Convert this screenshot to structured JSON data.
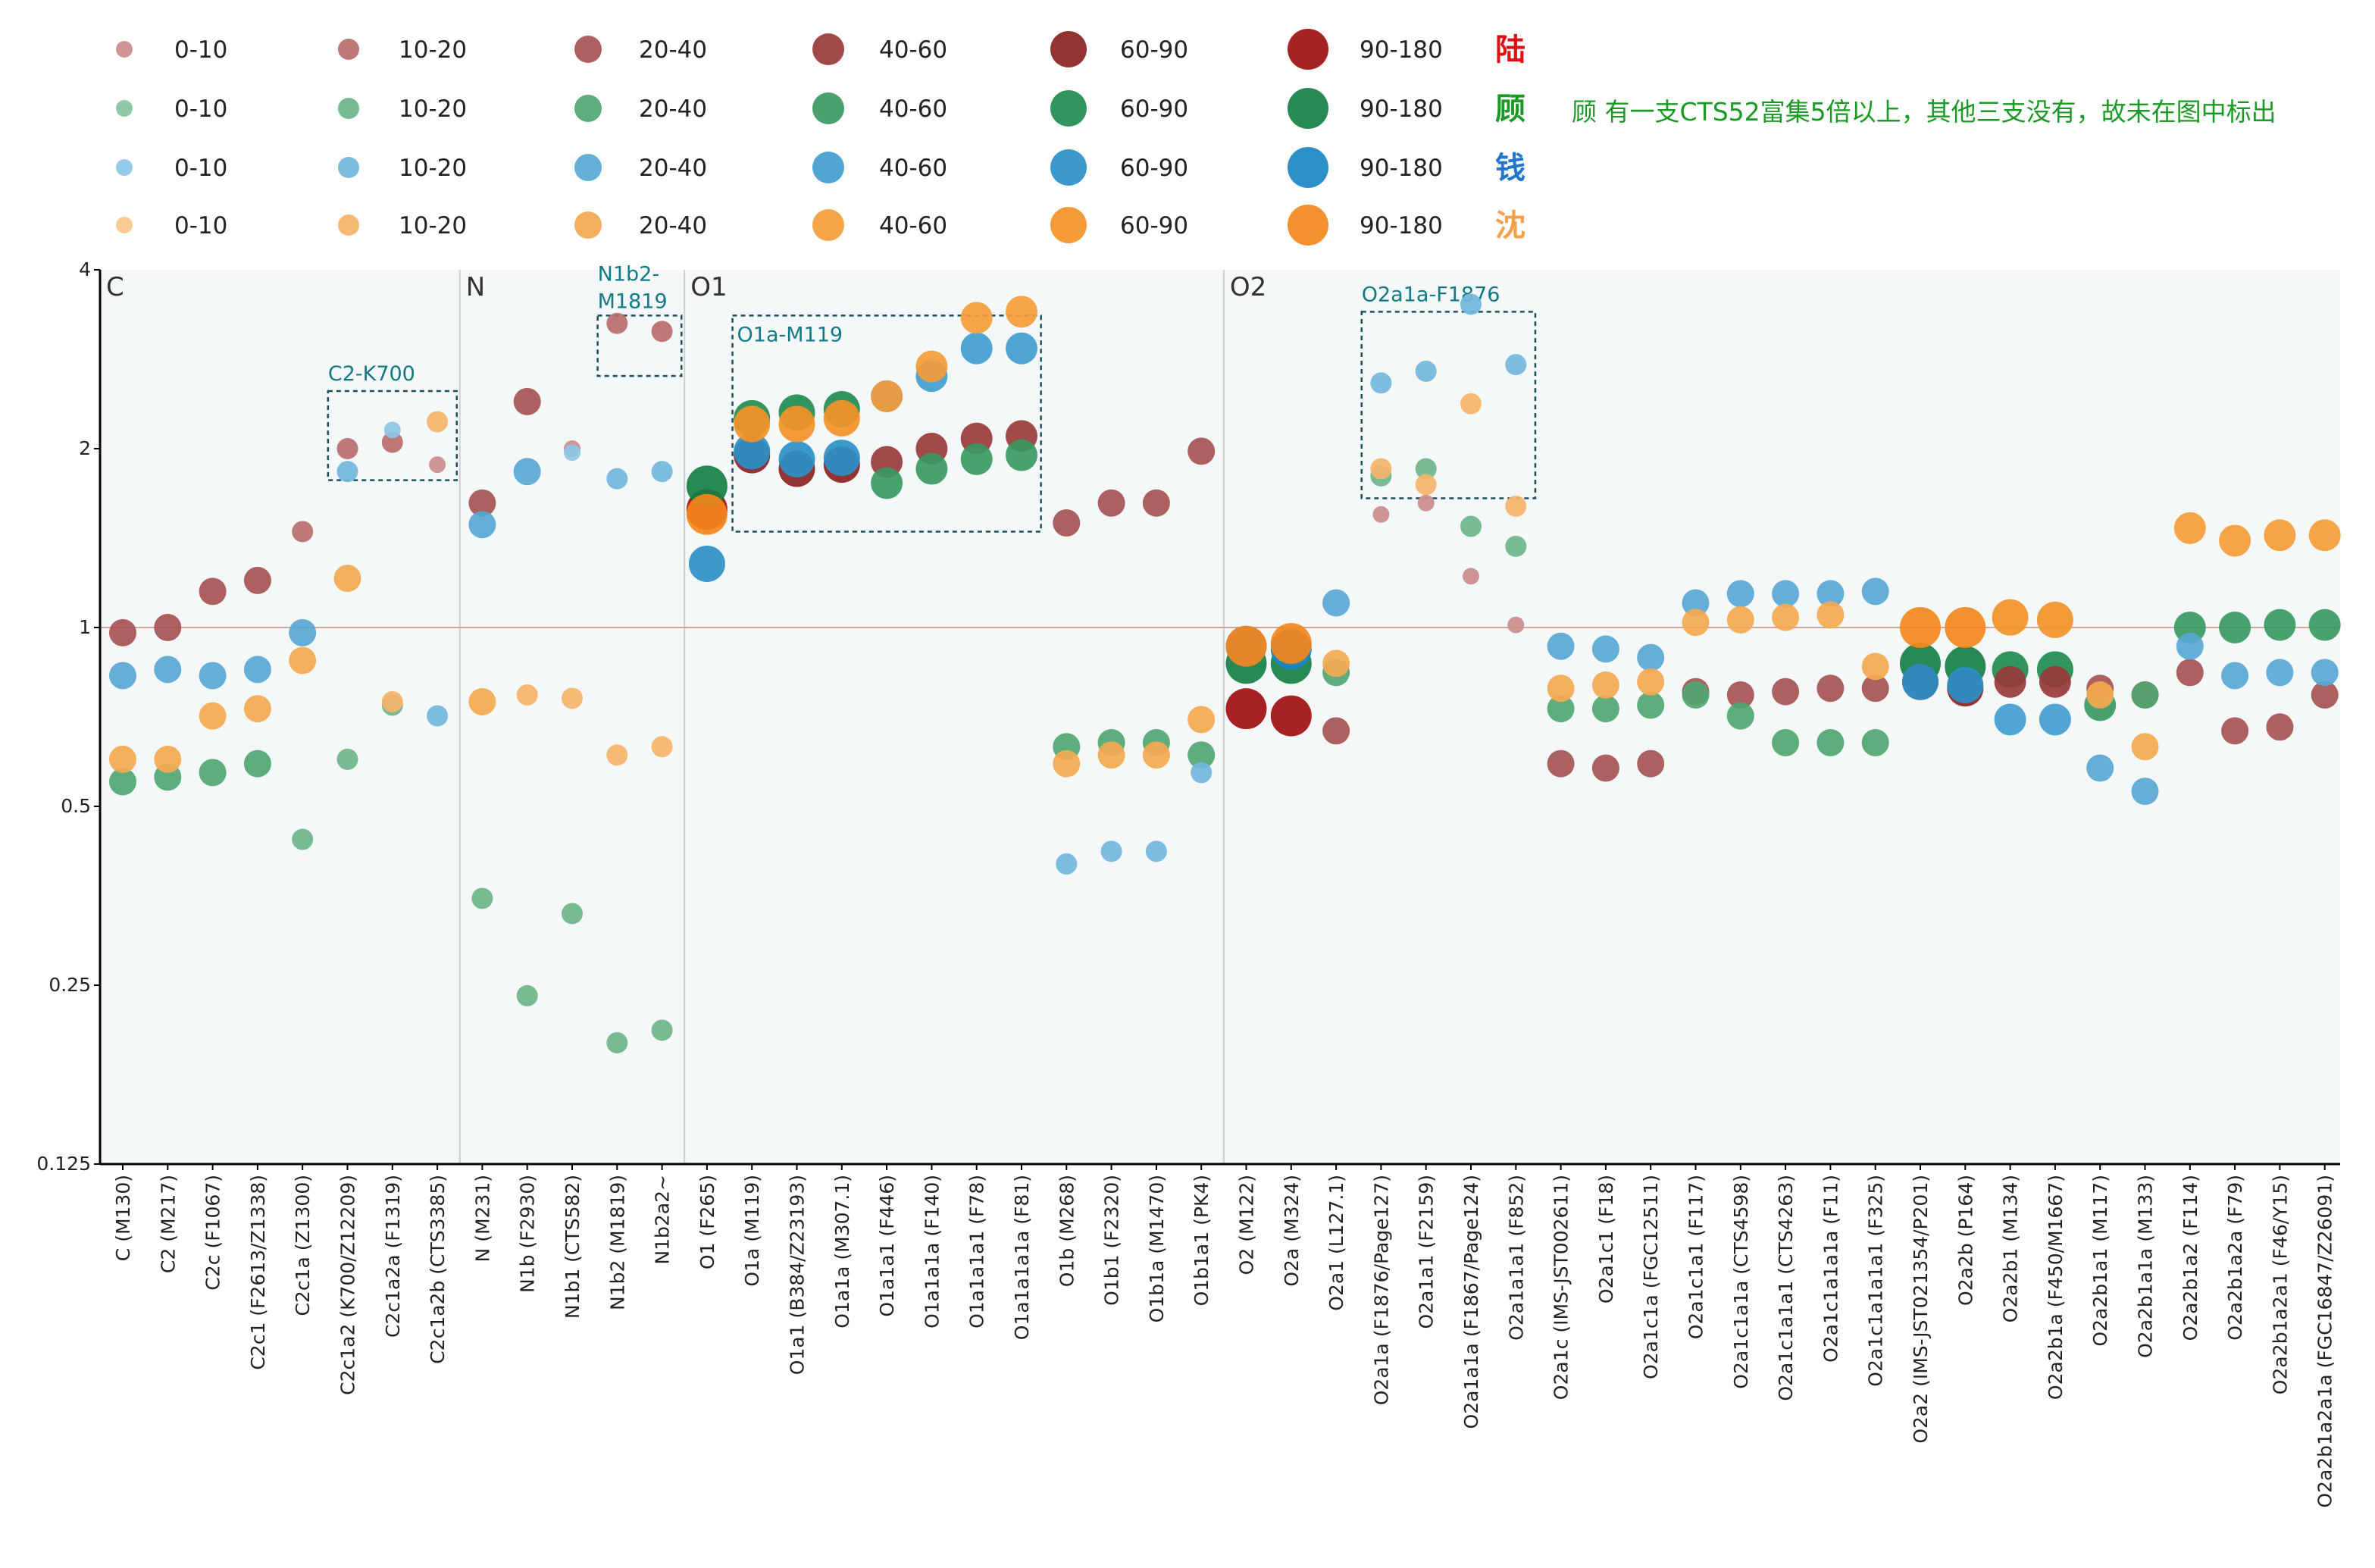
{
  "colors": {
    "lu": [
      "#c98c8c",
      "#b86d6d",
      "#a55252",
      "#983a3a",
      "#8b2222",
      "#a00f0f"
    ],
    "gu": [
      "#86c4a0",
      "#6db58a",
      "#4fa672",
      "#3a9962",
      "#228c50",
      "#157f44"
    ],
    "qian": [
      "#8cc6e6",
      "#71b6dc",
      "#57a7d4",
      "#419dcf",
      "#2b90c8",
      "#1a85c2"
    ],
    "shen": [
      "#f8c68a",
      "#f6b46a",
      "#f4a950",
      "#f49c38",
      "#f39228",
      "#f3871b"
    ],
    "surname_colors": [
      "#dd1111",
      "#1a9a24",
      "#2277cc",
      "#f3a04a"
    ],
    "refline": "#c98a7a",
    "plot_bg": "#f5f8f9"
  },
  "legend": {
    "bins": [
      "0-10",
      "10-20",
      "20-40",
      "40-60",
      "60-90",
      "90-180"
    ],
    "surnames": [
      "陆",
      "顾",
      "钱",
      "沈"
    ],
    "note": "顾 有一支CTS52富集5倍以上，其他三支没有，故未在图中标出"
  },
  "chart_data": {
    "type": "scatter",
    "y_scale": "log2",
    "ylim": [
      0.125,
      4
    ],
    "y_ticks": [
      "4",
      "2",
      "1",
      "0.5",
      "0.25",
      "0.125"
    ],
    "reference_line": 1,
    "groups": [
      {
        "label": "C",
        "start": 0
      },
      {
        "label": "N",
        "start": 8
      },
      {
        "label": "O1",
        "start": 13
      },
      {
        "label": "O2",
        "start": 25
      }
    ],
    "boxes": [
      {
        "label": "C2-K700",
        "from": 5,
        "to": 7,
        "ymin": 1.77,
        "ymax": 2.5
      },
      {
        "label": "N1b2-\nM1819",
        "from": 11,
        "to": 12,
        "ymin": 2.65,
        "ymax": 3.35
      },
      {
        "label": "O1a-M119",
        "from": 14,
        "to": 20,
        "ymin": 1.45,
        "ymax": 3.35
      },
      {
        "label": "O2a1a-F1876",
        "from": 28,
        "to": 31,
        "ymin": 1.65,
        "ymax": 3.4
      }
    ],
    "categories": [
      "C (M130)",
      "C2 (M217)",
      "C2c (F1067)",
      "C2c1 (F2613/Z1338)",
      "C2c1a (Z1300)",
      "C2c1a2 (K700/Z12209)",
      "C2c1a2a (F1319)",
      "C2c1a2b (CTS3385)",
      "N (M231)",
      "N1b (F2930)",
      "N1b1 (CTS582)",
      "N1b2 (M1819)",
      "N1b2a2~",
      "O1 (F265)",
      "O1a (M119)",
      "O1a1 (B384/Z23193)",
      "O1a1a (M307.1)",
      "O1a1a1 (F446)",
      "O1a1a1a (F140)",
      "O1a1a1a1 (F78)",
      "O1a1a1a1a (F81)",
      "O1b (M268)",
      "O1b1 (F2320)",
      "O1b1a (M1470)",
      "O1b1a1 (PK4)",
      "O2 (M122)",
      "O2a (M324)",
      "O2a1 (L127.1)",
      "O2a1a (F1876/Page127)",
      "O2a1a1 (F2159)",
      "O2a1a1a (F1867/Page124)",
      "O2a1a1a1 (F852)",
      "O2a1c (IMS-JST002611)",
      "O2a1c1 (F18)",
      "O2a1c1a (FGC12511)",
      "O2a1c1a1 (F117)",
      "O2a1c1a1a (CTS4598)",
      "O2a1c1a1a1 (CTS4263)",
      "O2a1c1a1a1a (F11)",
      "O2a1c1a1a1a1 (F325)",
      "O2a2 (IMS-JST021354/P201)",
      "O2a2b (P164)",
      "O2a2b1 (M134)",
      "O2a2b1a (F450/M1667)",
      "O2a2b1a1 (M117)",
      "O2a2b1a1a (M133)",
      "O2a2b1a2 (F114)",
      "O2a2b1a2a (F79)",
      "O2a2b1a2a1 (F46/Y15)",
      "O2a2b1a2a1a (FGC16847/Z26091)"
    ],
    "series": [
      {
        "name": "陆",
        "key": "lu",
        "points": [
          [
            0,
            0.98,
            2
          ],
          [
            1,
            1.0,
            2
          ],
          [
            2,
            1.15,
            2
          ],
          [
            3,
            1.2,
            2
          ],
          [
            4,
            1.45,
            1
          ],
          [
            5,
            2.0,
            1
          ],
          [
            6,
            2.05,
            1
          ],
          [
            7,
            1.88,
            0
          ],
          [
            8,
            1.62,
            2
          ],
          [
            9,
            2.4,
            2
          ],
          [
            10,
            2.0,
            0
          ],
          [
            11,
            3.25,
            1
          ],
          [
            12,
            3.15,
            1
          ],
          [
            13,
            1.58,
            5
          ],
          [
            14,
            1.95,
            4
          ],
          [
            15,
            1.85,
            4
          ],
          [
            16,
            1.88,
            4
          ],
          [
            17,
            1.9,
            3
          ],
          [
            18,
            2.0,
            3
          ],
          [
            19,
            2.08,
            3
          ],
          [
            20,
            2.1,
            3
          ],
          [
            21,
            1.5,
            2
          ],
          [
            22,
            1.62,
            2
          ],
          [
            23,
            1.62,
            2
          ],
          [
            24,
            1.98,
            2
          ],
          [
            25,
            0.73,
            5
          ],
          [
            26,
            0.71,
            5
          ],
          [
            27,
            0.67,
            2
          ],
          [
            28,
            1.55,
            0
          ],
          [
            29,
            1.62,
            0
          ],
          [
            30,
            1.22,
            0
          ],
          [
            31,
            1.01,
            0
          ],
          [
            32,
            0.59,
            2
          ],
          [
            33,
            0.58,
            2
          ],
          [
            34,
            0.59,
            2
          ],
          [
            35,
            0.78,
            2
          ],
          [
            36,
            0.77,
            2
          ],
          [
            37,
            0.78,
            2
          ],
          [
            38,
            0.79,
            2
          ],
          [
            39,
            0.79,
            2
          ],
          [
            40,
            0.81,
            4
          ],
          [
            41,
            0.79,
            4
          ],
          [
            42,
            0.81,
            3
          ],
          [
            43,
            0.81,
            3
          ],
          [
            44,
            0.79,
            2
          ],
          [
            45,
            0.77,
            2
          ],
          [
            46,
            0.84,
            2
          ],
          [
            47,
            0.67,
            2
          ],
          [
            48,
            0.68,
            2
          ],
          [
            49,
            0.77,
            2
          ]
        ]
      },
      {
        "name": "顾",
        "key": "gu",
        "points": [
          [
            0,
            0.55,
            2
          ],
          [
            1,
            0.56,
            2
          ],
          [
            2,
            0.57,
            2
          ],
          [
            3,
            0.59,
            2
          ],
          [
            4,
            0.44,
            1
          ],
          [
            5,
            0.6,
            1
          ],
          [
            6,
            0.74,
            1
          ],
          [
            8,
            0.35,
            1
          ],
          [
            9,
            0.24,
            1
          ],
          [
            10,
            0.33,
            1
          ],
          [
            11,
            0.2,
            1
          ],
          [
            12,
            0.21,
            1
          ],
          [
            13,
            1.73,
            5
          ],
          [
            14,
            2.25,
            4
          ],
          [
            15,
            2.3,
            4
          ],
          [
            16,
            2.33,
            4
          ],
          [
            17,
            1.75,
            3
          ],
          [
            18,
            1.85,
            3
          ],
          [
            19,
            1.92,
            3
          ],
          [
            20,
            1.95,
            3
          ],
          [
            21,
            0.63,
            2
          ],
          [
            22,
            0.64,
            2
          ],
          [
            23,
            0.64,
            2
          ],
          [
            24,
            0.61,
            2
          ],
          [
            25,
            0.87,
            5
          ],
          [
            26,
            0.87,
            5
          ],
          [
            27,
            0.84,
            2
          ],
          [
            28,
            1.8,
            1
          ],
          [
            29,
            1.85,
            1
          ],
          [
            30,
            1.48,
            1
          ],
          [
            31,
            1.37,
            1
          ],
          [
            32,
            0.73,
            2
          ],
          [
            33,
            0.73,
            2
          ],
          [
            34,
            0.74,
            2
          ],
          [
            35,
            0.77,
            2
          ],
          [
            36,
            0.71,
            2
          ],
          [
            37,
            0.64,
            2
          ],
          [
            38,
            0.64,
            2
          ],
          [
            39,
            0.64,
            2
          ],
          [
            40,
            0.87,
            5
          ],
          [
            41,
            0.86,
            5
          ],
          [
            42,
            0.85,
            4
          ],
          [
            43,
            0.85,
            4
          ],
          [
            44,
            0.74,
            3
          ],
          [
            45,
            0.77,
            2
          ],
          [
            46,
            1.0,
            3
          ],
          [
            47,
            1.0,
            3
          ],
          [
            48,
            1.01,
            3
          ],
          [
            49,
            1.01,
            3
          ]
        ]
      },
      {
        "name": "钱",
        "key": "qian",
        "points": [
          [
            0,
            0.83,
            2
          ],
          [
            1,
            0.85,
            2
          ],
          [
            2,
            0.83,
            2
          ],
          [
            3,
            0.85,
            2
          ],
          [
            4,
            0.98,
            2
          ],
          [
            5,
            1.83,
            1
          ],
          [
            6,
            2.15,
            0
          ],
          [
            7,
            0.71,
            1
          ],
          [
            8,
            1.49,
            2
          ],
          [
            9,
            1.83,
            2
          ],
          [
            10,
            1.97,
            0
          ],
          [
            11,
            1.78,
            1
          ],
          [
            12,
            1.83,
            1
          ],
          [
            13,
            1.28,
            4
          ],
          [
            14,
            1.98,
            4
          ],
          [
            15,
            1.92,
            4
          ],
          [
            16,
            1.93,
            4
          ],
          [
            17,
            2.45,
            3
          ],
          [
            18,
            2.65,
            3
          ],
          [
            19,
            2.95,
            3
          ],
          [
            20,
            2.95,
            3
          ],
          [
            21,
            0.4,
            1
          ],
          [
            22,
            0.42,
            1
          ],
          [
            23,
            0.42,
            1
          ],
          [
            24,
            0.57,
            1
          ],
          [
            25,
            0.93,
            5
          ],
          [
            26,
            0.92,
            5
          ],
          [
            27,
            1.1,
            2
          ],
          [
            28,
            2.58,
            1
          ],
          [
            29,
            2.7,
            1
          ],
          [
            30,
            3.5,
            1
          ],
          [
            31,
            2.77,
            1
          ],
          [
            32,
            0.93,
            2
          ],
          [
            33,
            0.92,
            2
          ],
          [
            34,
            0.89,
            2
          ],
          [
            35,
            1.1,
            2
          ],
          [
            36,
            1.14,
            2
          ],
          [
            37,
            1.14,
            2
          ],
          [
            38,
            1.14,
            2
          ],
          [
            39,
            1.15,
            2
          ],
          [
            40,
            0.81,
            4
          ],
          [
            41,
            0.8,
            4
          ],
          [
            42,
            0.7,
            3
          ],
          [
            43,
            0.7,
            3
          ],
          [
            44,
            0.58,
            2
          ],
          [
            45,
            0.53,
            2
          ],
          [
            46,
            0.93,
            2
          ],
          [
            47,
            0.83,
            2
          ],
          [
            48,
            0.84,
            2
          ],
          [
            49,
            0.84,
            2
          ]
        ]
      },
      {
        "name": "沈",
        "key": "shen",
        "points": [
          [
            0,
            0.6,
            2
          ],
          [
            1,
            0.6,
            2
          ],
          [
            2,
            0.71,
            2
          ],
          [
            3,
            0.73,
            2
          ],
          [
            4,
            0.88,
            2
          ],
          [
            5,
            1.21,
            2
          ],
          [
            6,
            0.75,
            1
          ],
          [
            7,
            2.22,
            1
          ],
          [
            8,
            0.75,
            2
          ],
          [
            9,
            0.77,
            1
          ],
          [
            10,
            0.76,
            1
          ],
          [
            11,
            0.61,
            1
          ],
          [
            12,
            0.63,
            1
          ],
          [
            13,
            1.55,
            5
          ],
          [
            14,
            2.2,
            4
          ],
          [
            15,
            2.2,
            4
          ],
          [
            16,
            2.25,
            4
          ],
          [
            17,
            2.45,
            3
          ],
          [
            18,
            2.75,
            3
          ],
          [
            19,
            3.32,
            3
          ],
          [
            20,
            3.4,
            3
          ],
          [
            21,
            0.59,
            2
          ],
          [
            22,
            0.61,
            2
          ],
          [
            23,
            0.61,
            2
          ],
          [
            24,
            0.7,
            2
          ],
          [
            25,
            0.93,
            5
          ],
          [
            26,
            0.94,
            5
          ],
          [
            27,
            0.87,
            2
          ],
          [
            28,
            1.85,
            1
          ],
          [
            29,
            1.74,
            1
          ],
          [
            30,
            2.38,
            1
          ],
          [
            31,
            1.6,
            1
          ],
          [
            32,
            0.79,
            2
          ],
          [
            33,
            0.8,
            2
          ],
          [
            34,
            0.81,
            2
          ],
          [
            35,
            1.02,
            2
          ],
          [
            36,
            1.03,
            2
          ],
          [
            37,
            1.04,
            2
          ],
          [
            38,
            1.05,
            2
          ],
          [
            39,
            0.86,
            2
          ],
          [
            40,
            1.0,
            5
          ],
          [
            41,
            1.0,
            5
          ],
          [
            42,
            1.04,
            4
          ],
          [
            43,
            1.03,
            4
          ],
          [
            44,
            0.77,
            2
          ],
          [
            45,
            0.63,
            2
          ],
          [
            46,
            1.47,
            3
          ],
          [
            47,
            1.4,
            3
          ],
          [
            48,
            1.43,
            3
          ],
          [
            49,
            1.43,
            3
          ]
        ]
      }
    ]
  }
}
